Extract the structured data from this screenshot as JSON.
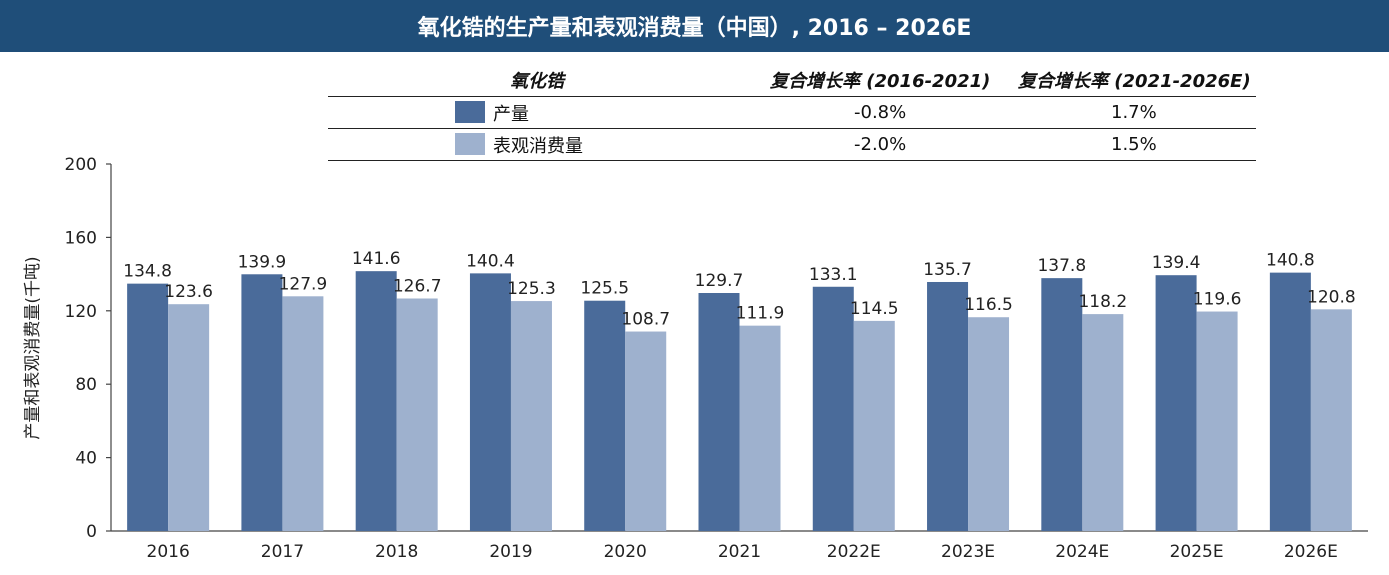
{
  "header": {
    "title": "氧化锆的生产量和表观消费量（中国）, 2016 – 2026E"
  },
  "cagr_table": {
    "headers": [
      "氧化锆",
      "复合增长率 (2016-2021)",
      "复合增长率 (2021-2026E)"
    ],
    "rows": [
      {
        "label": "产量",
        "cagr_2016_2021": "-0.8%",
        "cagr_2021_2026": "1.7%"
      },
      {
        "label": "表观消费量",
        "cagr_2016_2021": "-2.0%",
        "cagr_2021_2026": "1.5%"
      }
    ]
  },
  "colors": {
    "header_bg": "#1f4e79",
    "production": "#4a6b9a",
    "consumption": "#9eb1ce"
  },
  "chart_data": {
    "type": "bar",
    "categories": [
      "2016",
      "2017",
      "2018",
      "2019",
      "2020",
      "2021",
      "2022E",
      "2023E",
      "2024E",
      "2025E",
      "2026E"
    ],
    "series": [
      {
        "name": "产量",
        "values": [
          134.8,
          139.9,
          141.6,
          140.4,
          125.5,
          129.7,
          133.1,
          135.7,
          137.8,
          139.4,
          140.8
        ]
      },
      {
        "name": "表观消费量",
        "values": [
          123.6,
          127.9,
          126.7,
          125.3,
          108.7,
          111.9,
          114.5,
          116.5,
          118.2,
          119.6,
          120.8
        ]
      }
    ],
    "ylabel": "产量和表观消费量(千吨)",
    "ylim": [
      0,
      200
    ],
    "yticks": [
      0,
      40,
      80,
      120,
      160,
      200
    ],
    "grid": false
  }
}
